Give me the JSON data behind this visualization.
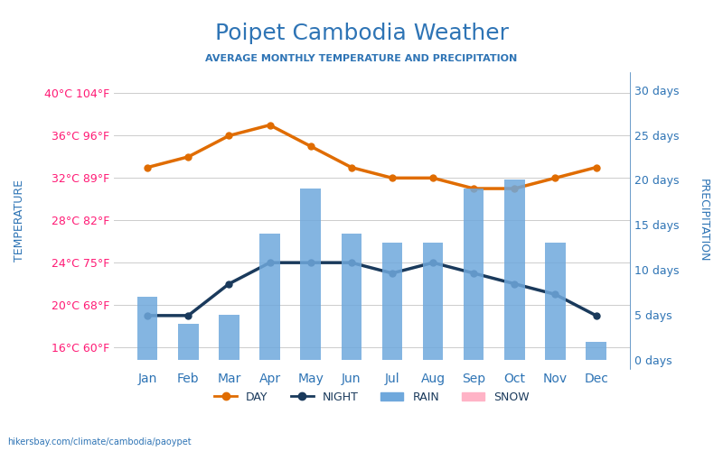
{
  "title": "Poipet Cambodia Weather",
  "subtitle": "AVERAGE MONTHLY TEMPERATURE AND PRECIPITATION",
  "months": [
    "Jan",
    "Feb",
    "Mar",
    "Apr",
    "May",
    "Jun",
    "Jul",
    "Aug",
    "Sep",
    "Oct",
    "Nov",
    "Dec"
  ],
  "day_temp": [
    33,
    34,
    36,
    37,
    35,
    33,
    32,
    32,
    31,
    31,
    32,
    33
  ],
  "night_temp": [
    19,
    19,
    22,
    24,
    24,
    24,
    23,
    24,
    23,
    22,
    21,
    19
  ],
  "rain_days": [
    7,
    4,
    5,
    14,
    19,
    14,
    13,
    13,
    19,
    20,
    13,
    2
  ],
  "bar_color": "#6fa8dc",
  "day_color": "#e06c00",
  "night_color": "#1a3a5c",
  "title_color": "#2e74b5",
  "subtitle_color": "#2e74b5",
  "left_label_color": "#ff1a75",
  "right_label_color": "#2e74b5",
  "ylabel_left": "TEMPERATURE",
  "ylabel_right": "PRECIPITATION",
  "ylim_left": [
    14,
    42
  ],
  "ylim_right": [
    -1,
    32
  ],
  "yticks_left": [
    16,
    20,
    24,
    28,
    32,
    36,
    40
  ],
  "ytick_labels_left": [
    "16°C 60°F",
    "20°C 68°F",
    "24°C 75°F",
    "28°C 82°F",
    "32°C 89°F",
    "36°C 96°F",
    "40°C 104°F"
  ],
  "yticks_right": [
    0,
    5,
    10,
    15,
    20,
    25,
    30
  ],
  "ytick_labels_right": [
    "0 days",
    "5 days",
    "10 days",
    "15 days",
    "20 days",
    "25 days",
    "30 days"
  ],
  "footer": "hikersbay.com/climate/cambodia/paoypet",
  "legend_day": "DAY",
  "legend_night": "NIGHT",
  "legend_rain": "RAIN",
  "legend_snow": "SNOW"
}
